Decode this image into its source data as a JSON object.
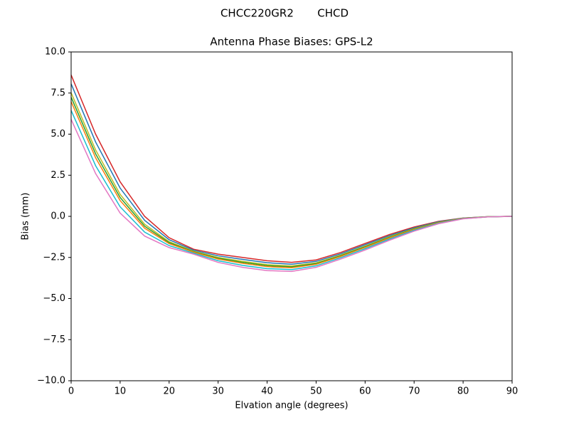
{
  "chart_data": {
    "type": "line",
    "suptitle": "CHCC220GR2       CHCD",
    "title": "Antenna Phase Biases: GPS-L2",
    "x_label": "Elvation angle (degrees)",
    "y_label": "Bias (mm)",
    "x": [
      0,
      5,
      10,
      15,
      20,
      25,
      30,
      35,
      40,
      45,
      50,
      55,
      60,
      65,
      70,
      75,
      80,
      85,
      90
    ],
    "series": [
      {
        "color": "#d62728",
        "values": [
          8.6,
          5.0,
          2.1,
          0.0,
          -1.3,
          -2.0,
          -2.3,
          -2.5,
          -2.7,
          -2.8,
          -2.65,
          -2.2,
          -1.65,
          -1.1,
          -0.65,
          -0.3,
          -0.1,
          -0.02,
          0
        ]
      },
      {
        "color": "#1f77b4",
        "values": [
          8.06,
          4.52,
          1.72,
          -0.24,
          -1.42,
          -2.06,
          -2.4,
          -2.62,
          -2.82,
          -2.91,
          -2.74,
          -2.28,
          -1.73,
          -1.17,
          -0.7,
          -0.33,
          -0.11,
          -0.02,
          0
        ]
      },
      {
        "color": "#bcbd22",
        "values": [
          7.52,
          4.04,
          1.34,
          -0.48,
          -1.54,
          -2.12,
          -2.5,
          -2.74,
          -2.94,
          -3.02,
          -2.83,
          -2.36,
          -1.81,
          -1.24,
          -0.75,
          -0.36,
          -0.12,
          -0.02,
          0
        ]
      },
      {
        "color": "#2ca02c",
        "values": [
          7.25,
          3.8,
          1.15,
          -0.6,
          -1.6,
          -2.15,
          -2.55,
          -2.8,
          -3.0,
          -3.075,
          -2.875,
          -2.4,
          -1.85,
          -1.275,
          -0.775,
          -0.375,
          -0.125,
          -0.025,
          0
        ]
      },
      {
        "color": "#ff7f0e",
        "values": [
          6.98,
          3.56,
          0.96,
          -0.72,
          -1.66,
          -2.18,
          -2.6,
          -2.86,
          -3.06,
          -3.13,
          -2.92,
          -2.44,
          -1.89,
          -1.31,
          -0.8,
          -0.39,
          -0.13,
          -0.03,
          0
        ]
      },
      {
        "color": "#17becf",
        "values": [
          6.44,
          3.08,
          0.58,
          -0.96,
          -1.78,
          -2.24,
          -2.7,
          -2.98,
          -3.18,
          -3.24,
          -3.01,
          -2.52,
          -1.97,
          -1.38,
          -0.85,
          -0.42,
          -0.14,
          -0.03,
          0
        ]
      },
      {
        "color": "#e377c2",
        "values": [
          5.9,
          2.6,
          0.2,
          -1.2,
          -1.9,
          -2.3,
          -2.8,
          -3.1,
          -3.3,
          -3.35,
          -3.1,
          -2.6,
          -2.05,
          -1.45,
          -0.9,
          -0.45,
          -0.15,
          -0.03,
          0
        ]
      }
    ],
    "xlim": [
      0,
      90
    ],
    "xticks": [
      0,
      10,
      20,
      30,
      40,
      50,
      60,
      70,
      80,
      90
    ],
    "ylim": [
      -10,
      10
    ],
    "yticks": [
      {
        "value": -10,
        "label": "−10.0"
      },
      {
        "value": -7.5,
        "label": "−7.5"
      },
      {
        "value": -5,
        "label": "−5.0"
      },
      {
        "value": -2.5,
        "label": "−2.5"
      },
      {
        "value": 0,
        "label": "0.0"
      },
      {
        "value": 2.5,
        "label": "2.5"
      },
      {
        "value": 5,
        "label": "5.0"
      },
      {
        "value": 7.5,
        "label": "7.5"
      },
      {
        "value": 10,
        "label": "10.0"
      }
    ],
    "grid": false
  }
}
